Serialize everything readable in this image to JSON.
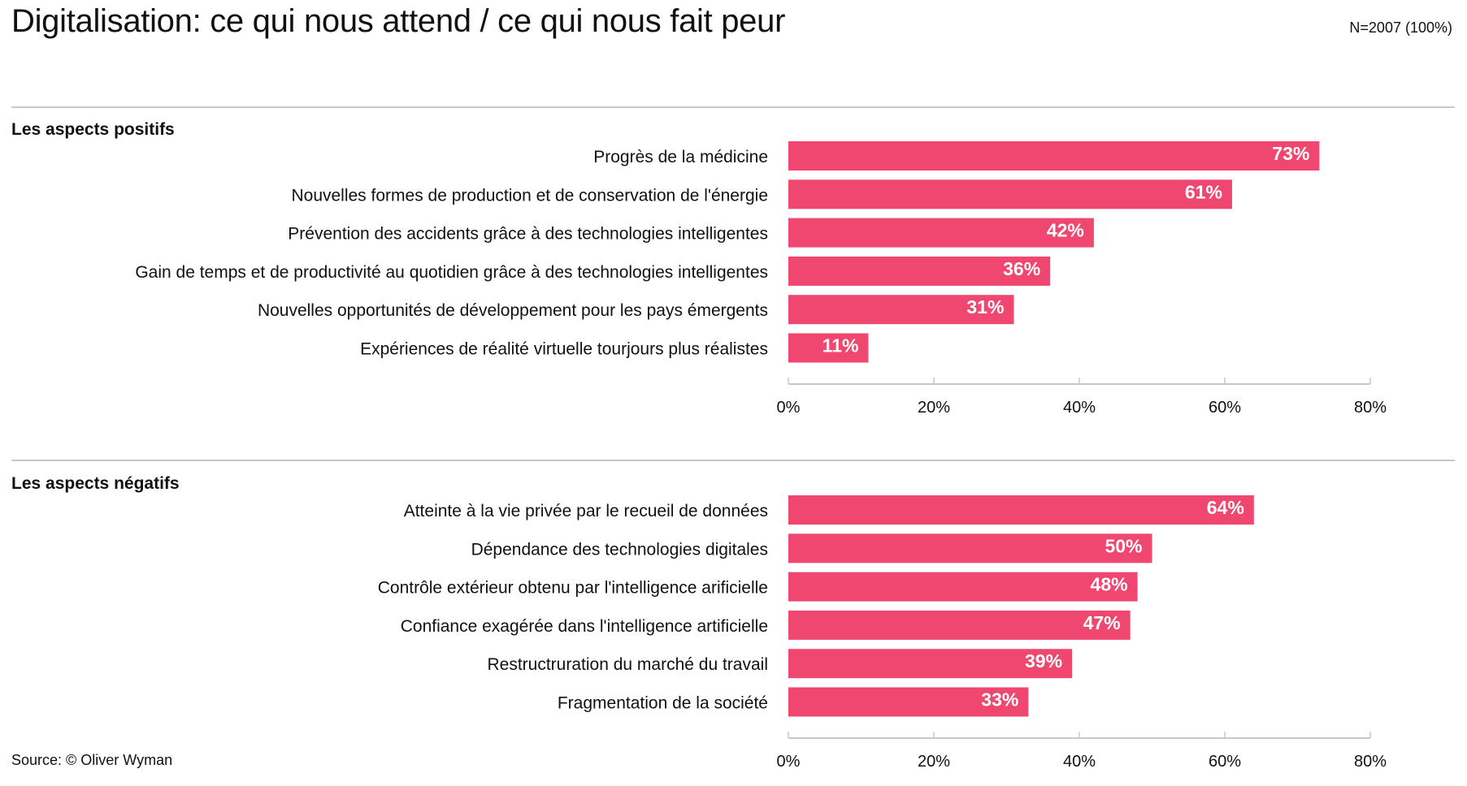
{
  "title": "Digitalisation: ce qui nous attend / ce qui nous fait peur",
  "sample": "N=2007 (100%)",
  "source": "Source: © Oliver Wyman",
  "colors": {
    "bar": "#EF476F",
    "axis": "#c8c8c8"
  },
  "chart_data": [
    {
      "type": "bar",
      "orientation": "horizontal",
      "title": "Les aspects positifs",
      "categories": [
        "Progrès de la médicine",
        "Nouvelles formes de production et de conservation de l'énergie",
        "Prévention des accidents grâce à des technologies intelligentes",
        "Gain de temps et de productivité au quotidien grâce à des technologies intelligentes",
        "Nouvelles opportunités de développement pour les pays émergents",
        "Expériences de réalité virtuelle tourjours plus réalistes"
      ],
      "values": [
        73,
        61,
        42,
        36,
        31,
        11
      ],
      "value_labels": [
        "73%",
        "61%",
        "42%",
        "36%",
        "31%",
        "11%"
      ],
      "xlim": [
        0,
        80
      ],
      "ticks": [
        "0%",
        "20%",
        "40%",
        "60%",
        "80%"
      ]
    },
    {
      "type": "bar",
      "orientation": "horizontal",
      "title": "Les aspects négatifs",
      "categories": [
        "Atteinte à la vie privée par le recueil de données",
        "Dépendance des technologies digitales",
        "Contrôle extérieur obtenu par l'intelligence arificielle",
        "Confiance exagérée dans l'intelligence artificielle",
        "Restructruration du marché du travail",
        "Fragmentation de la société"
      ],
      "values": [
        64,
        50,
        48,
        47,
        39,
        33
      ],
      "value_labels": [
        "64%",
        "50%",
        "48%",
        "47%",
        "39%",
        "33%"
      ],
      "xlim": [
        0,
        80
      ],
      "ticks": [
        "0%",
        "20%",
        "40%",
        "60%",
        "80%"
      ]
    }
  ]
}
